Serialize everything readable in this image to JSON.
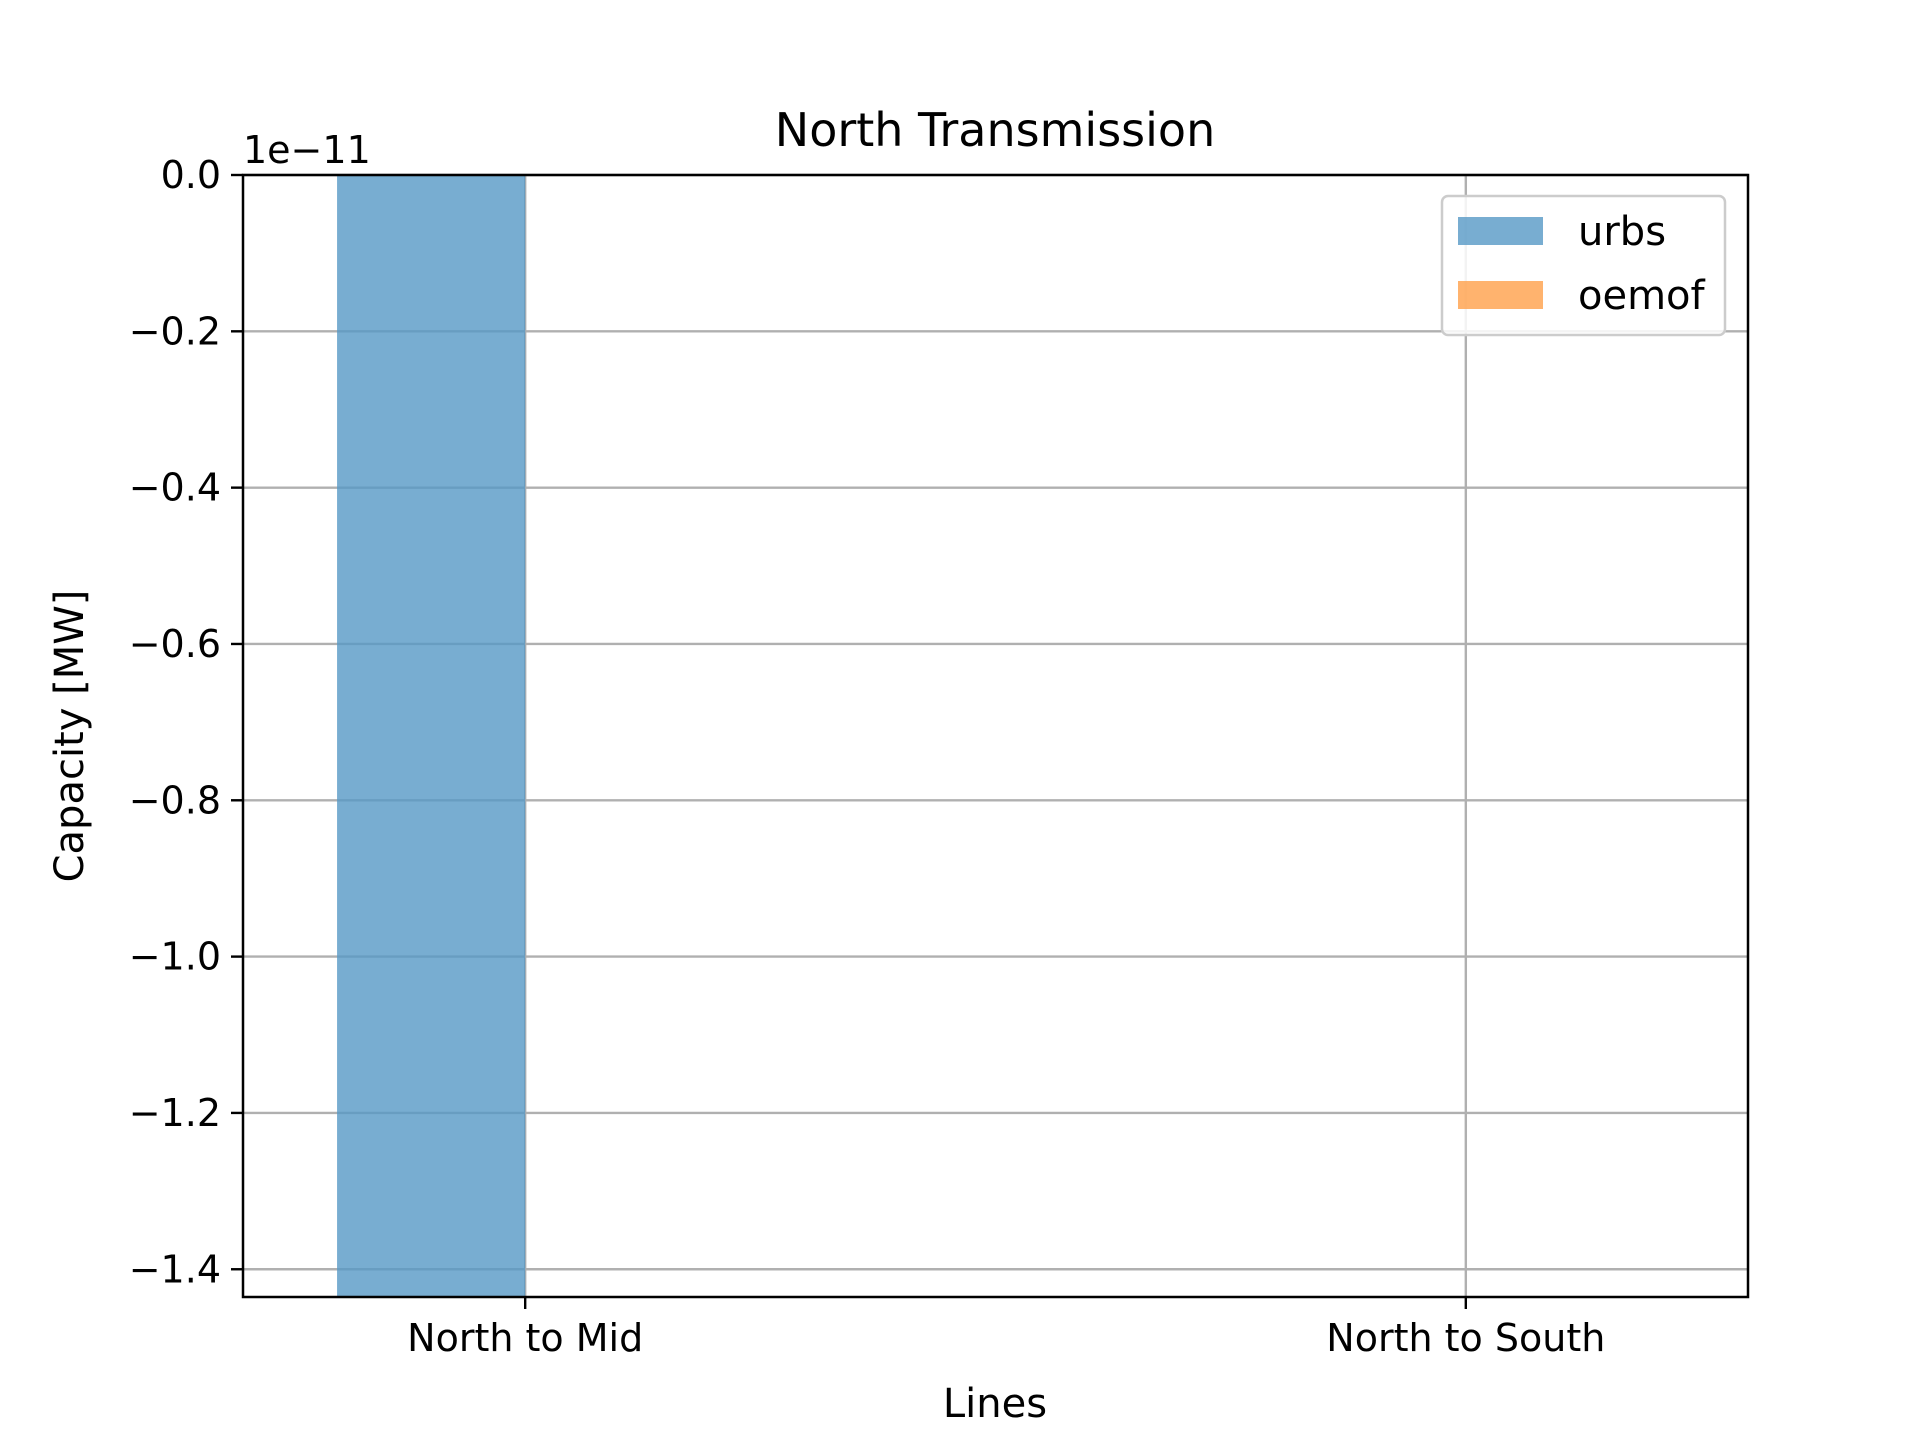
{
  "chart_data": {
    "type": "bar",
    "title": "North Transmission",
    "xlabel": "Lines",
    "ylabel": "Capacity [MW]",
    "offset_label": "1e−11",
    "categories": [
      "North to Mid",
      "North to South"
    ],
    "series": [
      {
        "name": "urbs",
        "color": "#5698c6",
        "values": [
          -1.4355e-11,
          0.0
        ]
      },
      {
        "name": "oemof",
        "color": "#ffa04a",
        "values": [
          0.0,
          0.0
        ]
      }
    ],
    "ylim": [
      -1.4355e-11,
      0.0
    ],
    "yticks": [
      {
        "value": 0.0,
        "label": "0.0"
      },
      {
        "value": -2e-12,
        "label": "−0.2"
      },
      {
        "value": -4e-12,
        "label": "−0.4"
      },
      {
        "value": -6e-12,
        "label": "−0.6"
      },
      {
        "value": -8e-12,
        "label": "−0.8"
      },
      {
        "value": -1e-11,
        "label": "−1.0"
      },
      {
        "value": -1.2e-11,
        "label": "−1.2"
      },
      {
        "value": -1.4e-11,
        "label": "−1.4"
      }
    ],
    "grid": true,
    "legend_position": "top-right"
  }
}
